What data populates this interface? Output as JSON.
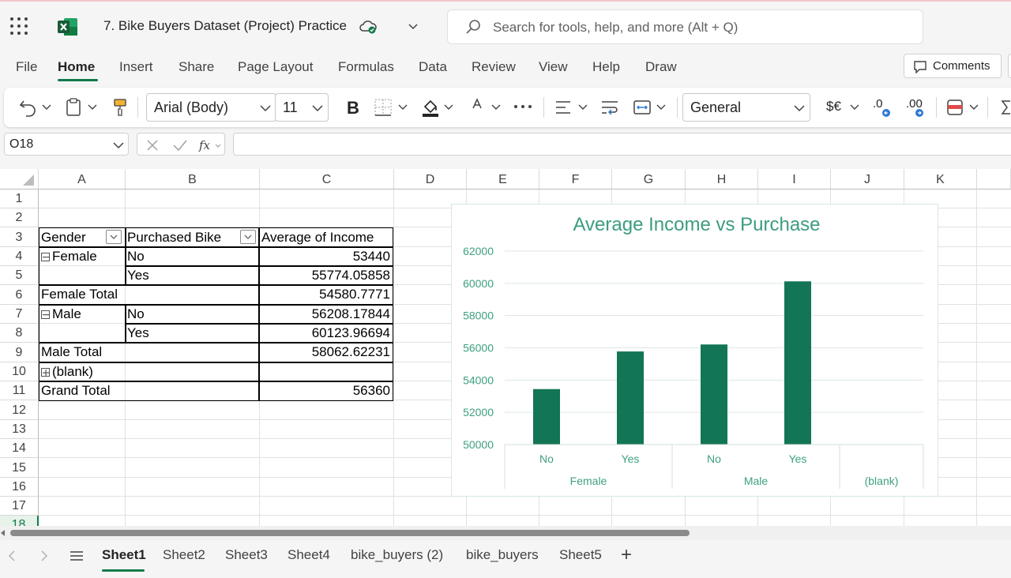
{
  "app": {
    "doc_title": "7. Bike Buyers Dataset (Project) Practice",
    "search_placeholder": "Search for tools, help, and more (Alt + Q)"
  },
  "menu": {
    "items": [
      "File",
      "Home",
      "Insert",
      "Share",
      "Page Layout",
      "Formulas",
      "Data",
      "Review",
      "View",
      "Help",
      "Draw"
    ],
    "active": "Home",
    "comments_label": "Comments"
  },
  "ribbon": {
    "font_name": "Arial (Body)",
    "font_size": "11",
    "number_format": "General",
    "currency_label": "$€",
    "dec_increase": ".0",
    "dec_decrease": ".00"
  },
  "formula_bar": {
    "name_box": "O18",
    "formula": ""
  },
  "grid": {
    "columns": [
      "A",
      "B",
      "C",
      "D",
      "E",
      "F",
      "G",
      "H",
      "I",
      "J",
      "K"
    ],
    "rows": [
      "1",
      "2",
      "3",
      "4",
      "5",
      "6",
      "7",
      "8",
      "9",
      "10",
      "11",
      "12",
      "13",
      "14",
      "15",
      "16",
      "17",
      "18"
    ]
  },
  "pivot": {
    "headers": [
      "Gender",
      "Purchased Bike",
      "Average of Income"
    ],
    "rows": [
      {
        "a": "Female",
        "b": "No",
        "c": "53440"
      },
      {
        "a": "",
        "b": "Yes",
        "c": "55774.05858"
      },
      {
        "a": "Female Total",
        "b": "",
        "c": "54580.7771"
      },
      {
        "a": "Male",
        "b": "No",
        "c": "56208.17844"
      },
      {
        "a": "",
        "b": "Yes",
        "c": "60123.96694"
      },
      {
        "a": "Male Total",
        "b": "",
        "c": "58062.62231"
      },
      {
        "a": "(blank)",
        "b": "",
        "c": ""
      },
      {
        "a": "Grand Total",
        "b": "",
        "c": "56360"
      }
    ]
  },
  "chart_data": {
    "type": "bar",
    "title": "Average Income vs Purchase",
    "categories": [
      "No",
      "Yes",
      "No",
      "Yes",
      ""
    ],
    "groups": [
      "Female",
      "Male",
      "(blank)"
    ],
    "group_sizes": [
      2,
      2,
      1
    ],
    "values": [
      53440,
      55774.05858,
      56208.17844,
      60123.96694,
      null
    ],
    "yticks": [
      50000,
      52000,
      54000,
      56000,
      58000,
      60000,
      62000
    ],
    "ylim": [
      50000,
      62000
    ],
    "grid": true,
    "legend": "none",
    "bar_color": "#127556",
    "title_color": "#3c9c80",
    "axis_label_color": "#3fa07f"
  },
  "sheets": {
    "tabs": [
      "Sheet1",
      "Sheet2",
      "Sheet3",
      "Sheet4",
      "bike_buyers (2)",
      "bike_buyers",
      "Sheet5"
    ],
    "active": "Sheet1",
    "add_label": "+"
  },
  "colors": {
    "accent": "#117a4a",
    "excel_green": "#107c41"
  }
}
